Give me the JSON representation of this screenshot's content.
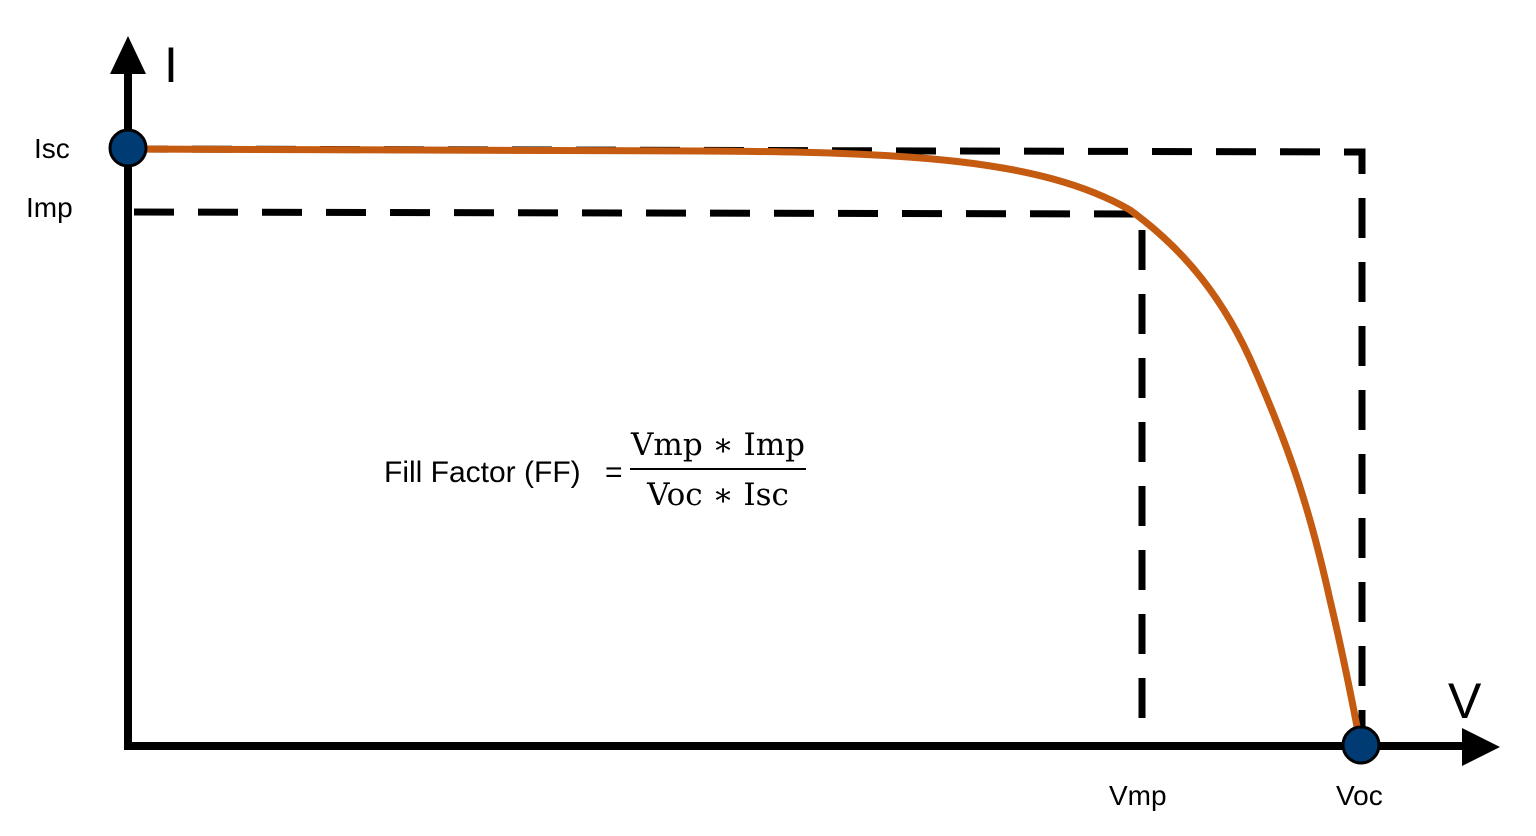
{
  "diagram": {
    "axes": {
      "y_label": "I",
      "x_label": "V"
    },
    "y_ticks": {
      "isc": "Isc",
      "imp": "Imp"
    },
    "x_ticks": {
      "vmp": "Vmp",
      "voc": "Voc"
    },
    "formula": {
      "label": "Fill Factor (FF)",
      "equals": "=",
      "numerator": "Vmp ∗ Imp",
      "denominator": "Voc ∗ Isc"
    },
    "colors": {
      "curve": "#C55A11",
      "marker": "#003B73",
      "axis": "#000000",
      "dashed": "#000000"
    }
  }
}
